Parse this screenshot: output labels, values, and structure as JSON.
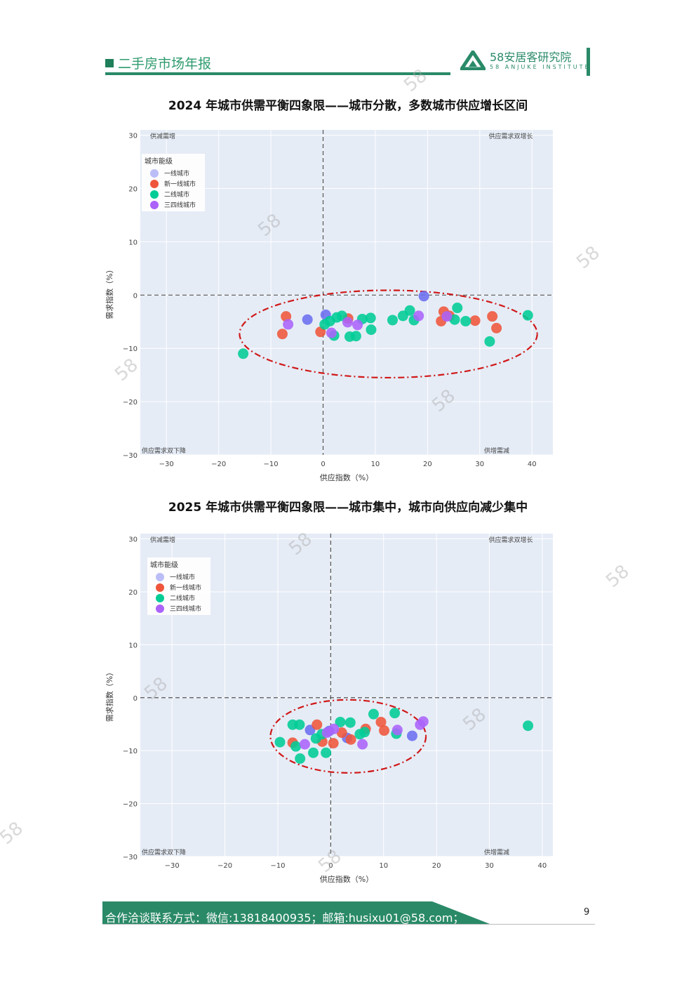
{
  "header": {
    "title": "二手房市场年报",
    "logo_brand": "58安居客研究院",
    "logo_sub": "58 ANJUKE INSTITUTE"
  },
  "watermark": "58",
  "footer": {
    "contact": "合作洽谈联系方式：微信:13818400935；邮箱:husixu01@58.com；",
    "page_number": "9"
  },
  "colors": {
    "accent": "#2a8a68",
    "plot_bg": "#e5ecf6",
    "tier1": "#6b6ef0",
    "new_tier1": "#ef553b",
    "tier2": "#00cc96",
    "tier34": "#ab63fa",
    "ellipse": "#d01818"
  },
  "chart_data": [
    {
      "type": "scatter",
      "title": "2024 年城市供需平衡四象限——城市分散，多数城市供应增长区间",
      "xlabel": "供应指数（%）",
      "ylabel": "需求指数（%）",
      "xlim": [
        -35,
        44
      ],
      "ylim": [
        -30,
        31
      ],
      "xticks": [
        -30,
        -20,
        -10,
        0,
        10,
        20,
        30,
        40
      ],
      "yticks": [
        -30,
        -20,
        -10,
        0,
        10,
        20,
        30
      ],
      "grid": true,
      "legend_title": "城市能级",
      "legend_position": "top-left",
      "quadrant_labels": {
        "top_left": "供减需增",
        "top_right": "供应需求双增长",
        "bottom_left": "供应需求双下降",
        "bottom_right": "供增需减"
      },
      "highlight_ellipse": {
        "cx": 12.5,
        "cy": -7.3,
        "rx": 28.5,
        "ry": 8.2
      },
      "series": [
        {
          "name": "一线城市",
          "color": "#6b6ef0",
          "points": [
            [
              0.5,
              -3.7
            ],
            [
              -3,
              -4.6
            ],
            [
              19.3,
              -0.2
            ]
          ]
        },
        {
          "name": "新一线城市",
          "color": "#ef553b",
          "points": [
            [
              -7.8,
              -7.3
            ],
            [
              -7.1,
              -4
            ],
            [
              -0.5,
              -6.9
            ],
            [
              4.8,
              -4.4
            ],
            [
              22.6,
              -4.9
            ],
            [
              23.1,
              -3.1
            ],
            [
              24.2,
              -3.9
            ],
            [
              29.1,
              -4.8
            ],
            [
              32.4,
              -4
            ],
            [
              33.2,
              -6.2
            ]
          ]
        },
        {
          "name": "二线城市",
          "color": "#00cc96",
          "points": [
            [
              -15.3,
              -11
            ],
            [
              0.3,
              -5.5
            ],
            [
              1.3,
              -4.9
            ],
            [
              2.1,
              -7.6
            ],
            [
              2.6,
              -4.2
            ],
            [
              3.6,
              -3.9
            ],
            [
              5.1,
              -7.8
            ],
            [
              6.3,
              -7.7
            ],
            [
              7.5,
              -4.5
            ],
            [
              9.1,
              -4.3
            ],
            [
              9.2,
              -6.5
            ],
            [
              13.3,
              -4.7
            ],
            [
              15.3,
              -3.9
            ],
            [
              16.6,
              -2.9
            ],
            [
              17.4,
              -4.7
            ],
            [
              25.2,
              -4.6
            ],
            [
              25.7,
              -2.4
            ],
            [
              27.3,
              -4.9
            ],
            [
              31.9,
              -8.7
            ],
            [
              39.2,
              -3.8
            ]
          ]
        },
        {
          "name": "三四线城市",
          "color": "#ab63fa",
          "points": [
            [
              -6.7,
              -5.5
            ],
            [
              1.6,
              -7.1
            ],
            [
              4.7,
              -5.1
            ],
            [
              6.6,
              -5.6
            ],
            [
              18.3,
              -3.9
            ],
            [
              23.7,
              -4
            ]
          ]
        }
      ]
    },
    {
      "type": "scatter",
      "title": "2025 年城市供需平衡四象限——城市集中，城市向供应向减少集中",
      "xlabel": "供应指数（%）",
      "ylabel": "需求指数（%）",
      "xlim": [
        -36,
        42
      ],
      "ylim": [
        -30,
        31
      ],
      "xticks": [
        -30,
        -20,
        -10,
        0,
        10,
        20,
        30,
        40
      ],
      "yticks": [
        -30,
        -20,
        -10,
        0,
        10,
        20,
        30
      ],
      "grid": true,
      "legend_title": "城市能级",
      "legend_position": "top-left",
      "quadrant_labels": {
        "top_left": "供减需增",
        "top_right": "供应需求双增长",
        "bottom_left": "供应需求双下降",
        "bottom_right": "供增需减"
      },
      "highlight_ellipse": {
        "cx": 3.3,
        "cy": -7.3,
        "rx": 14.7,
        "ry": 6.9
      },
      "series": [
        {
          "name": "一线城市",
          "color": "#6b6ef0",
          "points": [
            [
              -3.9,
              -6.1
            ],
            [
              -0.3,
              -6.3
            ],
            [
              3.1,
              -7.6
            ],
            [
              15.4,
              -7.2
            ]
          ]
        },
        {
          "name": "新一线城市",
          "color": "#ef553b",
          "points": [
            [
              -7.2,
              -8.5
            ],
            [
              -2.6,
              -5.1
            ],
            [
              -1.6,
              -8.3
            ],
            [
              0.5,
              -8.6
            ],
            [
              2.1,
              -6.6
            ],
            [
              3.8,
              -7.9
            ],
            [
              6.6,
              -5.9
            ],
            [
              9.5,
              -4.6
            ],
            [
              10.1,
              -6.2
            ]
          ]
        },
        {
          "name": "二线城市",
          "color": "#00cc96",
          "points": [
            [
              -9.6,
              -8.4
            ],
            [
              -7.2,
              -5.1
            ],
            [
              -6.6,
              -9.2
            ],
            [
              -5.9,
              -5.1
            ],
            [
              -5.8,
              -11.5
            ],
            [
              -3.3,
              -10.4
            ],
            [
              -2.8,
              -7.7
            ],
            [
              -1.7,
              -6.9
            ],
            [
              -0.9,
              -10.4
            ],
            [
              1.8,
              -4.6
            ],
            [
              3.7,
              -4.7
            ],
            [
              5.5,
              -6.9
            ],
            [
              6.4,
              -6.5
            ],
            [
              8.1,
              -3.1
            ],
            [
              12.1,
              -2.9
            ],
            [
              12.4,
              -6.8
            ],
            [
              37.3,
              -5.3
            ]
          ]
        },
        {
          "name": "三四线城市",
          "color": "#ab63fa",
          "points": [
            [
              -4.9,
              -8.8
            ],
            [
              -0.7,
              -6.6
            ],
            [
              0.6,
              -5.9
            ],
            [
              6,
              -8.8
            ],
            [
              12.6,
              -6.1
            ],
            [
              16.9,
              -5.1
            ],
            [
              17.5,
              -4.5
            ]
          ]
        }
      ]
    }
  ]
}
